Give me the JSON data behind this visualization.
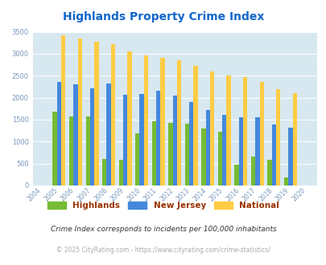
{
  "title": "Highlands Property Crime Index",
  "years": [
    2004,
    2005,
    2006,
    2007,
    2008,
    2009,
    2010,
    2011,
    2012,
    2013,
    2014,
    2015,
    2016,
    2017,
    2018,
    2019,
    2020
  ],
  "highlands": [
    0,
    1680,
    1580,
    1580,
    600,
    590,
    1190,
    1470,
    1430,
    1400,
    1290,
    1220,
    470,
    650,
    590,
    175,
    0
  ],
  "new_jersey": [
    0,
    2360,
    2310,
    2210,
    2320,
    2070,
    2080,
    2160,
    2050,
    1910,
    1720,
    1610,
    1555,
    1550,
    1390,
    1310,
    0
  ],
  "national": [
    0,
    3420,
    3340,
    3270,
    3210,
    3050,
    2960,
    2900,
    2860,
    2730,
    2590,
    2500,
    2460,
    2360,
    2200,
    2110,
    0
  ],
  "bar_width": 0.26,
  "ylim": [
    0,
    3500
  ],
  "yticks": [
    0,
    500,
    1000,
    1500,
    2000,
    2500,
    3000,
    3500
  ],
  "highlands_color": "#77bb33",
  "nj_color": "#4488dd",
  "national_color": "#ffcc44",
  "bg_color": "#d8e8f0",
  "title_color": "#1166cc",
  "legend_label_highlands": "Highlands",
  "legend_label_nj": "New Jersey",
  "legend_label_national": "National",
  "legend_text_color": "#993300",
  "footnote1": "Crime Index corresponds to incidents per 100,000 inhabitants",
  "footnote2": "© 2025 CityRating.com - https://www.cityrating.com/crime-statistics/",
  "footnote1_color": "#333333",
  "footnote2_color": "#aaaaaa",
  "axis_label_color": "#7799bb",
  "tick_color": "#7799bb",
  "grid_color": "#ffffff"
}
